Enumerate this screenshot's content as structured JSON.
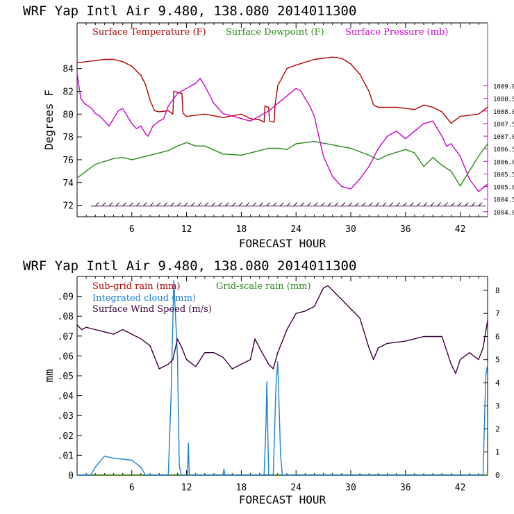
{
  "chart_data": [
    {
      "type": "line",
      "title": "WRF   Yap Intl Air   9.480, 138.080  2014011300",
      "xlabel": "FORECAST HOUR",
      "ylabel": "Degrees F",
      "xlim": [
        0,
        45
      ],
      "ylim": [
        71,
        88
      ],
      "x_ticks": [
        6,
        12,
        18,
        24,
        30,
        36,
        42
      ],
      "y_ticks": [
        72,
        74,
        76,
        78,
        80,
        82,
        84
      ],
      "y2_label": "Surface Pressure (mb)",
      "y2lim": [
        1003.8,
        1011.5
      ],
      "y2_ticks": [
        "1004.0",
        "1004.5",
        "1005.0",
        "1005.5",
        "1006.0",
        "1006.5",
        "1007.0",
        "1007.5",
        "1008.0",
        "1008.5",
        "1009.0"
      ],
      "series": [
        {
          "name": "Surface Temperature (F)",
          "color": "#b40000",
          "axis": "left",
          "x": [
            0,
            1,
            2,
            3,
            4,
            5,
            6,
            7,
            7.5,
            8,
            8.5,
            9,
            10,
            10.5,
            10.6,
            11.5,
            11.6,
            12,
            14,
            16,
            18,
            19,
            20,
            20.5,
            20.6,
            21,
            21.1,
            21.6,
            21.7,
            22,
            23,
            24,
            26,
            28,
            29,
            30,
            31,
            32,
            32.5,
            33,
            35,
            37,
            38,
            39,
            40,
            41,
            42,
            44,
            45
          ],
          "values": [
            84.5,
            84.6,
            84.7,
            84.8,
            84.8,
            84.6,
            84.2,
            83.4,
            82.6,
            81.2,
            80.3,
            80.2,
            80.3,
            80.0,
            82.0,
            81.8,
            80.1,
            79.8,
            80.0,
            79.7,
            80.0,
            79.6,
            79.5,
            79.3,
            80.7,
            80.6,
            79.4,
            79.3,
            80.8,
            82.5,
            84.0,
            84.3,
            84.8,
            85.0,
            84.9,
            84.4,
            83.5,
            82.0,
            80.8,
            80.6,
            80.6,
            80.4,
            80.8,
            80.6,
            80.2,
            79.2,
            79.8,
            80.0,
            80.6
          ]
        },
        {
          "name": "Surface Dewpoint (F)",
          "color": "#2a8a1a",
          "axis": "left",
          "x": [
            0,
            1,
            2,
            4,
            5,
            6,
            8,
            10,
            11,
            12,
            13,
            14,
            16,
            18,
            20,
            21,
            22,
            23,
            24,
            26,
            28,
            30,
            32,
            33,
            34,
            36,
            37,
            38,
            39,
            40,
            41,
            42,
            43,
            44,
            45
          ],
          "values": [
            74.4,
            75.0,
            75.6,
            76.1,
            76.2,
            76.0,
            76.4,
            76.8,
            77.2,
            77.5,
            77.2,
            77.2,
            76.5,
            76.4,
            76.8,
            77.0,
            77.0,
            76.9,
            77.4,
            77.6,
            77.3,
            77.0,
            76.4,
            76.0,
            76.4,
            76.9,
            76.6,
            75.4,
            76.2,
            75.5,
            75.0,
            73.7,
            75.0,
            76.3,
            77.4
          ]
        },
        {
          "name": "Surface Pressure (mb)",
          "color": "#cc00cc",
          "axis": "right",
          "x": [
            0,
            0.4,
            0.8,
            1.2,
            1.6,
            2,
            2.5,
            3,
            3.5,
            4,
            4.5,
            5,
            5.5,
            6,
            6.5,
            7,
            7.5,
            7.8,
            8.3,
            9,
            9.5,
            10,
            11,
            12,
            13,
            13.5,
            14,
            15,
            16,
            17,
            18,
            19,
            20,
            21,
            22,
            23,
            24,
            24.5,
            25,
            25.5,
            26,
            26.5,
            27,
            28,
            29,
            30,
            31,
            32,
            33,
            34,
            35,
            36,
            37,
            38,
            39,
            40,
            40.5,
            41,
            42,
            43,
            44,
            45
          ],
          "values": [
            1009.5,
            1008.5,
            1008.3,
            1008.2,
            1008.1,
            1007.9,
            1007.8,
            1007.6,
            1007.4,
            1007.7,
            1008.0,
            1008.1,
            1007.8,
            1007.5,
            1007.3,
            1007.4,
            1007.1,
            1007.0,
            1007.4,
            1007.6,
            1007.7,
            1008.2,
            1008.7,
            1008.9,
            1009.1,
            1009.3,
            1009.0,
            1008.3,
            1007.9,
            1007.8,
            1007.7,
            1007.6,
            1007.8,
            1008.0,
            1008.3,
            1008.6,
            1008.9,
            1008.8,
            1008.5,
            1008.2,
            1007.8,
            1007.0,
            1006.2,
            1005.4,
            1005.0,
            1004.9,
            1005.3,
            1005.8,
            1006.5,
            1007.0,
            1007.2,
            1006.9,
            1007.2,
            1007.5,
            1007.6,
            1007.0,
            1006.6,
            1006.7,
            1006.2,
            1005.3,
            1004.8,
            1005.1
          ]
        }
      ],
      "wind_barbs": "row of wind barbs along 72 F"
    },
    {
      "type": "line",
      "title": "WRF   Yap Intl Air   9.480, 138.080  2014011300",
      "xlabel": "FORECAST HOUR",
      "ylabel": "mm",
      "xlim": [
        0,
        45
      ],
      "ylim": [
        0,
        0.1
      ],
      "x_ticks": [
        6,
        12,
        18,
        24,
        30,
        36,
        42
      ],
      "y_ticks": [
        0,
        0.01,
        0.02,
        0.03,
        0.04,
        0.05,
        0.06,
        0.07,
        0.08,
        0.09
      ],
      "y_tick_labels": [
        "0",
        ".01",
        ".02",
        ".03",
        ".04",
        ".05",
        ".06",
        ".07",
        ".08",
        ".09"
      ],
      "y2_label": "Surface Wind Speed (m/s)",
      "y2lim": [
        0,
        8.6
      ],
      "y2_ticks": [
        0,
        1,
        2,
        3,
        4,
        5,
        6,
        7,
        8
      ],
      "series": [
        {
          "name": "Sub-grid rain (mm)",
          "color": "#b40000",
          "axis": "left",
          "x": [
            0,
            45
          ],
          "values": [
            0,
            0
          ]
        },
        {
          "name": "Grid-scale rain (mm)",
          "color": "#2a8a1a",
          "axis": "left",
          "x": [
            0,
            45
          ],
          "values": [
            0,
            0
          ]
        },
        {
          "name": "Integrated cloud (mm)",
          "color": "#1c7fd8",
          "axis": "left",
          "x": [
            0,
            1.5,
            2,
            3,
            4,
            5,
            6,
            7,
            7.5,
            10,
            10.3,
            10.6,
            11,
            11.2,
            11.4,
            11.8,
            12.1,
            12.2,
            12.3,
            12.5,
            16,
            16.1,
            16.2,
            20.5,
            20.7,
            20.8,
            21,
            21.5,
            21.8,
            22.0,
            22.3,
            22.5,
            44.5,
            44.8,
            45
          ],
          "values": [
            0,
            0,
            0.004,
            0.0095,
            0.0085,
            0.008,
            0.0075,
            0.004,
            0,
            0,
            0.04,
            0.098,
            0.06,
            0.005,
            0,
            0,
            0,
            0.016,
            0,
            0,
            0,
            0.003,
            0,
            0,
            0.025,
            0.047,
            0,
            0,
            0.045,
            0.057,
            0.01,
            0,
            0,
            0.05,
            0.056
          ]
        },
        {
          "name": "Surface Wind Speed (m/s)",
          "color": "#3a003a",
          "axis": "right",
          "x": [
            0,
            0.5,
            1,
            2,
            3,
            4,
            5,
            6,
            7,
            8,
            9,
            10,
            10.5,
            11,
            11.5,
            12,
            13,
            14,
            15,
            16,
            17,
            18,
            19,
            19.5,
            20,
            21,
            21.5,
            22,
            23,
            24,
            25,
            26,
            27,
            27.5,
            28,
            29,
            30,
            31,
            32,
            32.5,
            33,
            34,
            36,
            37,
            38,
            39,
            40,
            41,
            41.5,
            42,
            43,
            44,
            44.5,
            45
          ],
          "values": [
            6.5,
            6.3,
            6.4,
            6.3,
            6.2,
            6.1,
            6.3,
            6.1,
            5.9,
            5.6,
            4.6,
            4.8,
            5.0,
            5.9,
            5.5,
            5.0,
            4.7,
            5.3,
            5.3,
            5.1,
            4.6,
            4.8,
            5.0,
            5.9,
            5.5,
            4.8,
            4.6,
            5.3,
            6.3,
            7.0,
            7.1,
            7.3,
            8.1,
            8.2,
            8.0,
            7.6,
            7.2,
            6.8,
            5.5,
            5.0,
            5.5,
            5.7,
            5.8,
            5.9,
            6.0,
            6.0,
            6.0,
            4.8,
            4.4,
            5.0,
            5.3,
            5.0,
            5.5,
            6.7
          ]
        }
      ]
    }
  ]
}
